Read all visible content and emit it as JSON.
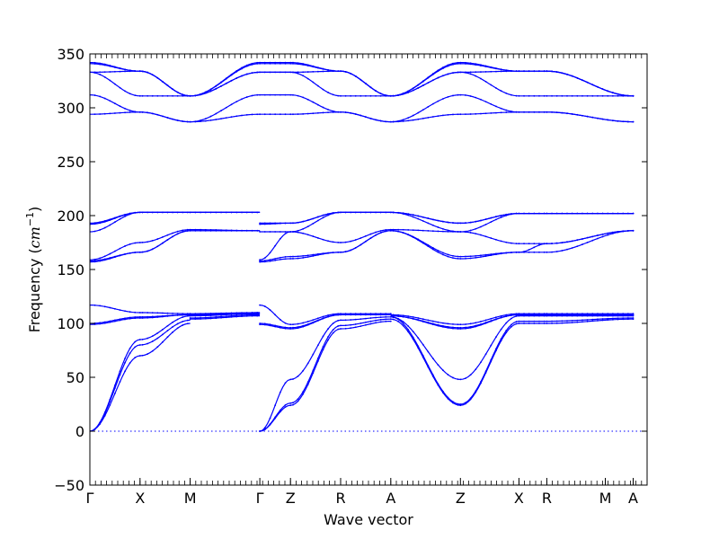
{
  "chart_data": {
    "type": "line",
    "title": "",
    "xlabel": "Wave vector",
    "ylabel": "Frequency ($cm^{-1}$)",
    "ylabel_parts": {
      "text": "Frequency (",
      "unit": "cm",
      "exp": "−1",
      "close": ")"
    },
    "ylim": [
      -50,
      350
    ],
    "yticks": [
      -50,
      0,
      50,
      100,
      150,
      200,
      250,
      300,
      350
    ],
    "xlim": [
      0,
      10
    ],
    "xticks": [
      {
        "label": "Γ",
        "x": 0
      },
      {
        "label": "X",
        "x": 0.9
      },
      {
        "label": "M",
        "x": 1.8
      },
      {
        "label": "Γ",
        "x": 3.05
      },
      {
        "label": "Z",
        "x": 3.6
      },
      {
        "label": "R",
        "x": 4.5
      },
      {
        "label": "A",
        "x": 5.4
      },
      {
        "label": "Z",
        "x": 6.65
      },
      {
        "label": "X",
        "x": 7.7
      },
      {
        "label": "R",
        "x": 8.2
      },
      {
        "label": "M",
        "x": 9.25
      },
      {
        "label": "A",
        "x": 9.75
      }
    ],
    "color": "#0000ff",
    "zero_line": true,
    "bands": [
      [
        0,
        70,
        100,
        104,
        107,
        0,
        24,
        95,
        102,
        104,
        24,
        100,
        100,
        104
      ],
      [
        0,
        80,
        103,
        105,
        108,
        0,
        26,
        98,
        104,
        106,
        25,
        102,
        102,
        105
      ],
      [
        0,
        85,
        107,
        107,
        109,
        0,
        48,
        103,
        106,
        106,
        48,
        107,
        107,
        107
      ],
      [
        99,
        105,
        108,
        108,
        109,
        99,
        95,
        108,
        108,
        107,
        95,
        108,
        108,
        108
      ],
      [
        100,
        106,
        108,
        108,
        110,
        100,
        96,
        108,
        108,
        107,
        96,
        108,
        108,
        108
      ],
      [
        117,
        110,
        109,
        109,
        110,
        117,
        99,
        109,
        109,
        108,
        99,
        109,
        109,
        109
      ],
      [
        157,
        166,
        186,
        186,
        186,
        157,
        160,
        166,
        186,
        186,
        160,
        166,
        166,
        186
      ],
      [
        158,
        166,
        186,
        186,
        186,
        158,
        162,
        166,
        186,
        186,
        162,
        166,
        174,
        186
      ],
      [
        159,
        175,
        187,
        187,
        186,
        159,
        185,
        175,
        187,
        187,
        185,
        174,
        174,
        186
      ],
      [
        185,
        203,
        203,
        203,
        203,
        185,
        185,
        203,
        203,
        203,
        185,
        202,
        202,
        202
      ],
      [
        192,
        203,
        203,
        203,
        203,
        192,
        193,
        203,
        203,
        203,
        193,
        202,
        202,
        202
      ],
      [
        193,
        203,
        203,
        203,
        203,
        193,
        193,
        203,
        203,
        203,
        193,
        202,
        202,
        202
      ],
      [
        294,
        296,
        287,
        287,
        294,
        294,
        294,
        296,
        287,
        287,
        294,
        296,
        296,
        287
      ],
      [
        312,
        296,
        287,
        287,
        312,
        312,
        312,
        296,
        287,
        287,
        312,
        296,
        296,
        287
      ],
      [
        333,
        311,
        311,
        311,
        333,
        333,
        333,
        311,
        311,
        311,
        333,
        311,
        311,
        311
      ],
      [
        333,
        334,
        311,
        311,
        333,
        333,
        333,
        334,
        311,
        311,
        333,
        334,
        334,
        311
      ],
      [
        341,
        334,
        311,
        311,
        341,
        341,
        341,
        334,
        311,
        311,
        341,
        334,
        334,
        311
      ],
      [
        342,
        334,
        311,
        311,
        342,
        342,
        342,
        334,
        311,
        311,
        342,
        334,
        334,
        311
      ]
    ],
    "band_x": [
      0,
      0.9,
      1.8,
      1.8,
      3.05,
      3.05,
      3.6,
      4.5,
      5.4,
      5.4,
      6.65,
      7.7,
      8.2,
      9.75
    ]
  }
}
